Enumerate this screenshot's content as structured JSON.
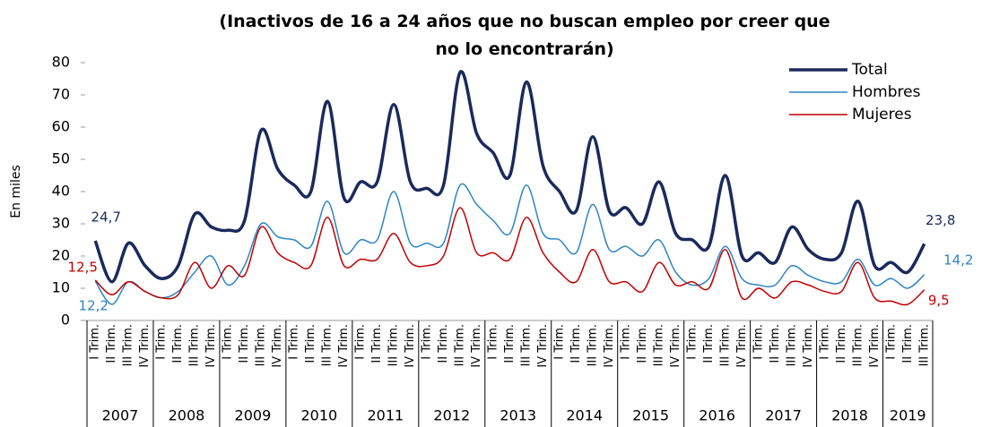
{
  "chart_data": {
    "type": "line",
    "title": "(Inactivos de 16 a 24 años que no buscan empleo por creer que no lo encontrarán)",
    "y_label": "En miles",
    "categories": [
      "I Trim.",
      "II Trim.",
      "III Trim.",
      "IV Trim.",
      "I Trim.",
      "II Trim.",
      "III Trim.",
      "IV Trim.",
      "I Trim.",
      "II Trim.",
      "III Trim.",
      "IV Trim.",
      "I Trim.",
      "II Trim.",
      "III Trim.",
      "IV Trim.",
      "I Trim.",
      "II Trim.",
      "III Trim.",
      "IV Trim.",
      "I Trim.",
      "II Trim.",
      "III Trim.",
      "IV Trim.",
      "I Trim.",
      "II Trim.",
      "III Trim.",
      "IV Trim.",
      "I Trim.",
      "II Trim.",
      "III Trim.",
      "IV Trim.",
      "I Trim.",
      "II Trim.",
      "III Trim.",
      "IV Trim.",
      "I Trim.",
      "II Trim.",
      "III Trim.",
      "IV Trim.",
      "I Trim.",
      "II Trim.",
      "III Trim.",
      "IV Trim.",
      "I Trim.",
      "II Trim.",
      "III Trim.",
      "IV Trim.",
      "I Trim.",
      "II Trim.",
      "III Trim."
    ],
    "years": [
      "2007",
      "2008",
      "2009",
      "2010",
      "2011",
      "2012",
      "2013",
      "2014",
      "2015",
      "2016",
      "2017",
      "2018",
      "2019"
    ],
    "series": [
      {
        "name": "Total",
        "color": "#1b2a5c",
        "values": [
          24.7,
          12,
          24,
          17,
          13,
          17,
          33,
          29,
          28,
          31,
          59,
          47,
          42,
          40,
          68,
          38,
          43,
          43,
          67,
          43,
          41,
          42,
          77,
          58,
          52,
          45,
          74,
          48,
          40,
          34,
          57,
          34,
          35,
          30,
          43,
          27,
          25,
          23,
          45,
          20,
          21,
          18,
          29,
          22,
          19,
          21,
          37,
          17,
          18,
          15,
          23.8
        ],
        "value_labels": [
          "24,7",
          null,
          null,
          null,
          null,
          null,
          null,
          null,
          null,
          null,
          null,
          null,
          null,
          null,
          null,
          null,
          null,
          null,
          null,
          null,
          null,
          null,
          null,
          null,
          null,
          null,
          null,
          null,
          null,
          null,
          null,
          null,
          null,
          null,
          null,
          null,
          null,
          null,
          null,
          null,
          null,
          null,
          null,
          null,
          null,
          null,
          null,
          null,
          null,
          null,
          "23,8"
        ]
      },
      {
        "name": "Hombres",
        "color": "#2f84c5",
        "values": [
          12.2,
          5,
          12,
          9,
          7,
          9,
          15,
          20,
          11,
          17,
          30,
          26,
          25,
          23,
          37,
          21,
          25,
          25,
          40,
          24,
          24,
          24,
          42,
          36,
          31,
          27,
          42,
          27,
          25,
          21,
          36,
          22,
          23,
          20,
          25,
          15,
          11,
          13,
          23,
          13,
          11,
          11,
          17,
          14,
          12,
          12,
          19,
          11,
          13,
          10,
          14.2
        ],
        "value_labels": [
          "12,2",
          null,
          null,
          null,
          null,
          null,
          null,
          null,
          null,
          null,
          null,
          null,
          null,
          null,
          null,
          null,
          null,
          null,
          null,
          null,
          null,
          null,
          null,
          null,
          null,
          null,
          null,
          null,
          null,
          null,
          null,
          null,
          null,
          null,
          null,
          null,
          null,
          null,
          null,
          null,
          null,
          null,
          null,
          null,
          null,
          null,
          null,
          null,
          null,
          null,
          "14,2"
        ]
      },
      {
        "name": "Mujeres",
        "color": "#c00000",
        "values": [
          12.5,
          8,
          12,
          9,
          7,
          8,
          18,
          10,
          17,
          14,
          29,
          21,
          18,
          17,
          32,
          17,
          19,
          19,
          27,
          18,
          17,
          20,
          35,
          21,
          21,
          19,
          32,
          21,
          15,
          12,
          22,
          12,
          12,
          9,
          18,
          11,
          12,
          10,
          22,
          7,
          10,
          7,
          12,
          11,
          9,
          9,
          18,
          7,
          6,
          5,
          9.5
        ],
        "value_labels": [
          "12,5",
          null,
          null,
          null,
          null,
          null,
          null,
          null,
          null,
          null,
          null,
          null,
          null,
          null,
          null,
          null,
          null,
          null,
          null,
          null,
          null,
          null,
          null,
          null,
          null,
          null,
          null,
          null,
          null,
          null,
          null,
          null,
          null,
          null,
          null,
          null,
          null,
          null,
          null,
          null,
          null,
          null,
          null,
          null,
          null,
          null,
          null,
          null,
          null,
          null,
          "9,5"
        ]
      }
    ],
    "ylim": [
      0,
      80
    ],
    "yticks": [
      0,
      10,
      20,
      30,
      40,
      50,
      60,
      70,
      80
    ],
    "legend": "top-right"
  }
}
